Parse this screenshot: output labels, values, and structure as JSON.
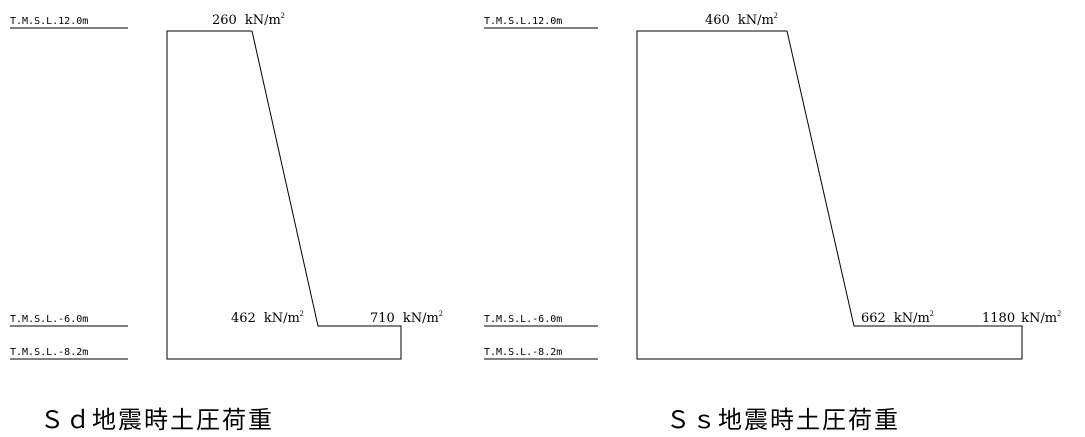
{
  "diagrams": [
    {
      "levels": [
        {
          "label": "T.M.S.L.12.0m"
        },
        {
          "label": "T.M.S.L.-6.0m"
        },
        {
          "label": "T.M.S.L.-8.2m"
        }
      ],
      "pressures": {
        "top": {
          "value": "260",
          "unit": "kN/m",
          "sup": "2"
        },
        "mid": {
          "value": "462",
          "unit": "kN/m",
          "sup": "2"
        },
        "bottom": {
          "value": "710",
          "unit": "kN/m",
          "sup": "2"
        }
      },
      "caption": "Ｓｄ地震時土圧荷重"
    },
    {
      "levels": [
        {
          "label": "T.M.S.L.12.0m"
        },
        {
          "label": "T.M.S.L.-6.0m"
        },
        {
          "label": "T.M.S.L.-8.2m"
        }
      ],
      "pressures": {
        "top": {
          "value": "460",
          "unit": "kN/m",
          "sup": "2"
        },
        "mid": {
          "value": "662",
          "unit": "kN/m",
          "sup": "2"
        },
        "bottom": {
          "value": "1180",
          "unit": "kN/m",
          "sup": "2"
        }
      },
      "caption": "Ｓｓ地震時土圧荷重"
    }
  ]
}
